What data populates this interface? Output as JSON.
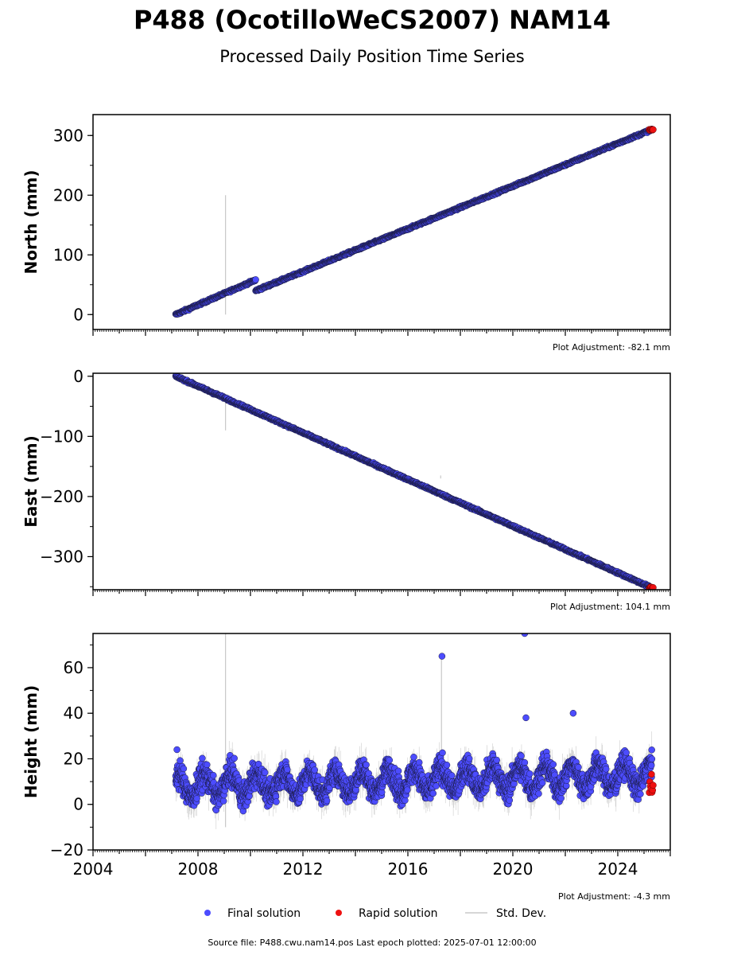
{
  "header": {
    "title": "P488 (OcotilloWeCS2007) NAM14",
    "subtitle": "Processed Daily Position Time Series"
  },
  "colors": {
    "final": "#4c4cff",
    "final_edge": "#1a1a40",
    "rapid": "#ee1111",
    "std_dev": "#b8b8b8"
  },
  "chart_data": [
    {
      "type": "scatter",
      "ylabel": "North (mm)",
      "xlim": [
        2004,
        2026
      ],
      "ylim": [
        -25,
        335
      ],
      "yticks": [
        0,
        100,
        200,
        300
      ],
      "adjustment": "Plot Adjustment: -82.1 mm",
      "segments": [
        {
          "x": [
            2007.15,
            2010.2
          ],
          "y": [
            0,
            58
          ]
        },
        {
          "x": [
            2010.2,
            2025.3
          ],
          "y": [
            40,
            310
          ]
        }
      ],
      "rapid": {
        "x": [
          2025.2,
          2025.35
        ],
        "y": [
          308,
          311
        ]
      },
      "spikes": [
        {
          "x": 2009.05,
          "y0": 0,
          "y1": 200
        }
      ]
    },
    {
      "type": "scatter",
      "ylabel": "East (mm)",
      "xlim": [
        2004,
        2026
      ],
      "ylim": [
        -355,
        5
      ],
      "yticks": [
        0,
        -100,
        -200,
        -300
      ],
      "adjustment": "Plot Adjustment: 104.1 mm",
      "segments": [
        {
          "x": [
            2007.15,
            2025.3
          ],
          "y": [
            0,
            -352
          ]
        }
      ],
      "rapid": {
        "x": [
          2025.2,
          2025.35
        ],
        "y": [
          -350,
          -354
        ]
      },
      "spikes": [
        {
          "x": 2009.05,
          "y0": -40,
          "y1": -90
        },
        {
          "x": 2017.25,
          "y0": -170,
          "y1": -165
        }
      ]
    },
    {
      "type": "scatter",
      "ylabel": "Height (mm)",
      "xlim": [
        2004,
        2026
      ],
      "ylim": [
        -20,
        75
      ],
      "yticks": [
        -20,
        0,
        20,
        40,
        60
      ],
      "xticks": [
        "2004",
        "2008",
        "2012",
        "2016",
        "2020",
        "2024"
      ],
      "adjustment": "Plot Adjustment: -4.3 mm",
      "range": {
        "x": [
          2007.15,
          2025.3
        ],
        "mean": 8,
        "trend_end": 13,
        "amp": 5,
        "noise": 5
      },
      "rapid": {
        "x": [
          2025.2,
          2025.35
        ],
        "y": [
          4,
          14
        ]
      },
      "outliers": [
        {
          "x": 2017.3,
          "y": 65
        },
        {
          "x": 2020.45,
          "y": 75
        },
        {
          "x": 2020.5,
          "y": 38
        },
        {
          "x": 2022.3,
          "y": 40
        },
        {
          "x": 2007.2,
          "y": 24
        }
      ],
      "spikes": [
        {
          "x": 2009.05,
          "y0": -10,
          "y1": 75
        },
        {
          "x": 2017.28,
          "y0": 10,
          "y1": 65
        }
      ]
    }
  ],
  "legend": {
    "final": "Final solution",
    "rapid": "Rapid solution",
    "std_dev": "Std. Dev."
  },
  "footer": {
    "source": "Source file: P488.cwu.nam14.pos  Last epoch plotted: 2025-07-01 12:00:00"
  }
}
